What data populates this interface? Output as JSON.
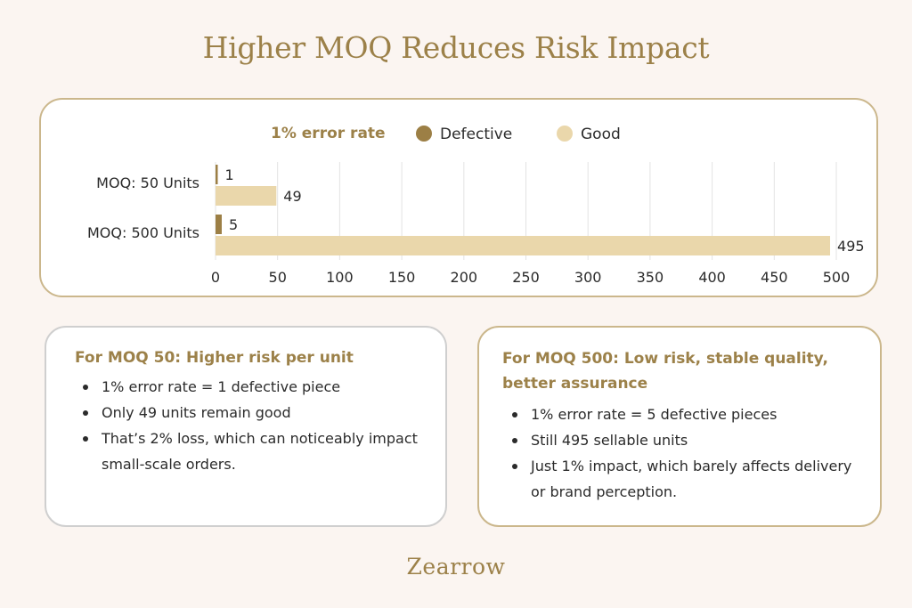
{
  "title": "Higher MOQ Reduces Risk Impact",
  "colors": {
    "accent": "#9c8149",
    "defective": "#9c7f45",
    "good": "#ead7ab"
  },
  "chart_data": {
    "type": "bar",
    "orientation": "horizontal",
    "stacked": false,
    "title": "1% error rate",
    "categories": [
      "MOQ: 50 Units",
      "MOQ: 500 Units"
    ],
    "series": [
      {
        "name": "Defective",
        "values": [
          1,
          5
        ],
        "color": "#9c7f45"
      },
      {
        "name": "Good",
        "values": [
          49,
          495
        ],
        "color": "#ead7ab"
      }
    ],
    "xlim": [
      0,
      500
    ],
    "xticks": [
      0,
      50,
      100,
      150,
      200,
      250,
      300,
      350,
      400,
      450,
      500
    ],
    "grid": "vertical",
    "legend": "top",
    "data_labels": true
  },
  "cards": {
    "left": {
      "title": "For MOQ 50: Higher risk per unit",
      "bullets": [
        "1% error rate = 1 defective piece",
        "Only 49 units remain good",
        "That’s 2% loss, which can noticeably impact small-scale orders."
      ]
    },
    "right": {
      "title": "For MOQ 500: Low risk, stable quality, better assurance",
      "bullets": [
        "1% error rate = 5 defective pieces",
        "Still 495 sellable units",
        "Just 1% impact, which barely affects delivery or brand perception."
      ]
    }
  },
  "logo": "Zearrow"
}
